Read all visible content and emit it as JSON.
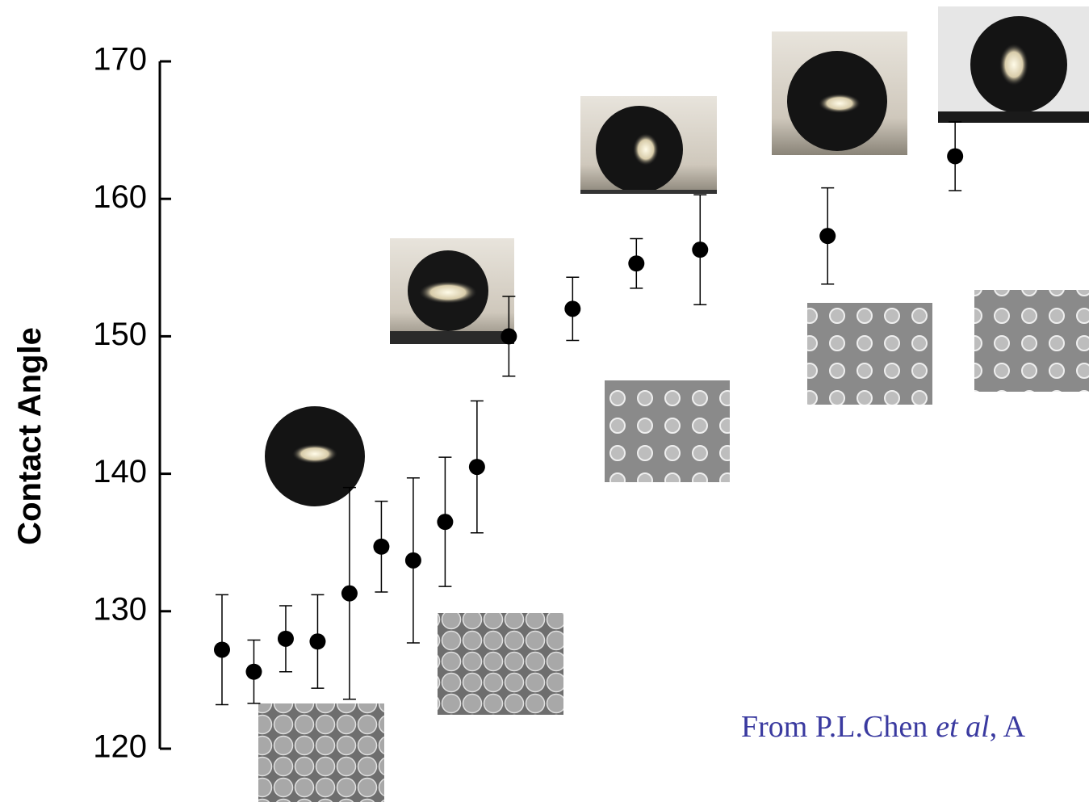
{
  "chart_data": {
    "type": "scatter",
    "y_label": "Contact Angle",
    "citation": {
      "text": "From P.L.Chen",
      "italic": "et al",
      "suffix": ", A"
    },
    "x": [
      1,
      2,
      3,
      4,
      5,
      6,
      7,
      8,
      9,
      10,
      12,
      14,
      16,
      20,
      24
    ],
    "series": [
      {
        "color": "#000000",
        "values": [
          127.2,
          125.6,
          128.0,
          127.8,
          131.3,
          134.7,
          133.7,
          136.5,
          140.5,
          150.0,
          152.0,
          155.3,
          156.3,
          157.3,
          163.1
        ],
        "errors": [
          4.0,
          2.3,
          2.4,
          3.4,
          7.7,
          3.3,
          6.0,
          4.7,
          4.8,
          2.9,
          2.3,
          1.8,
          4.0,
          3.5,
          2.5
        ]
      }
    ],
    "xlim": [
      -0.95,
      28.2
    ],
    "ylim": [
      120,
      170
    ],
    "yticks": [
      120,
      130,
      140,
      150,
      160,
      170
    ]
  }
}
